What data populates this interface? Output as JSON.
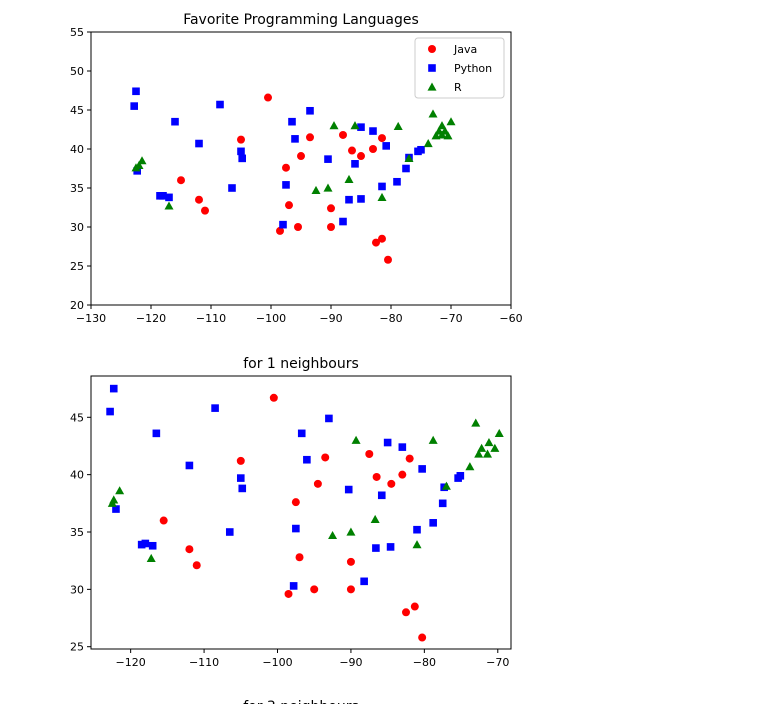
{
  "chart_data": [
    {
      "type": "scatter",
      "title": "Favorite Programming Languages",
      "xlim": [
        -130,
        -60
      ],
      "ylim": [
        20,
        55
      ],
      "x_ticks": [
        -130,
        -120,
        -110,
        -100,
        -90,
        -80,
        -70,
        -60
      ],
      "y_ticks": [
        20,
        25,
        30,
        35,
        40,
        45,
        50,
        55
      ],
      "legend": "top-right",
      "colors": {
        "Java": "#ff0000",
        "Python": "#0000ff",
        "R": "#008000"
      },
      "series": [
        {
          "name": "Java",
          "marker": "circle",
          "points": [
            [
              -100.5,
              46.6
            ],
            [
              -105,
              41.2
            ],
            [
              -97.5,
              37.6
            ],
            [
              -115,
              36
            ],
            [
              -112,
              33.5
            ],
            [
              -111,
              32.1
            ],
            [
              -97,
              32.8
            ],
            [
              -98.5,
              29.5
            ],
            [
              -95.5,
              30
            ],
            [
              -95,
              39.1
            ],
            [
              -93.5,
              41.5
            ],
            [
              -88,
              41.8
            ],
            [
              -86.5,
              39.8
            ],
            [
              -85,
              39.1
            ],
            [
              -83,
              40
            ],
            [
              -81.5,
              41.4
            ],
            [
              -90,
              32.4
            ],
            [
              -90,
              30
            ],
            [
              -82.5,
              28
            ],
            [
              -81.5,
              28.5
            ],
            [
              -80.5,
              25.8
            ]
          ]
        },
        {
          "name": "Python",
          "marker": "square",
          "points": [
            [
              -122.5,
              47.4
            ],
            [
              -122.8,
              45.5
            ],
            [
              -122.3,
              37.2
            ],
            [
              -118.5,
              34
            ],
            [
              -118,
              34
            ],
            [
              -117,
              33.8
            ],
            [
              -116,
              43.5
            ],
            [
              -112,
              40.7
            ],
            [
              -108.5,
              45.7
            ],
            [
              -106.5,
              35
            ],
            [
              -105,
              39.7
            ],
            [
              -104.8,
              38.8
            ],
            [
              -97.5,
              35.4
            ],
            [
              -98,
              30.3
            ],
            [
              -96.5,
              43.5
            ],
            [
              -96,
              41.3
            ],
            [
              -93.5,
              44.9
            ],
            [
              -90.5,
              38.7
            ],
            [
              -88,
              30.7
            ],
            [
              -87,
              33.5
            ],
            [
              -86,
              38.1
            ],
            [
              -85,
              42.8
            ],
            [
              -85,
              33.6
            ],
            [
              -83,
              42.3
            ],
            [
              -81.5,
              35.2
            ],
            [
              -80.8,
              40.4
            ],
            [
              -79,
              35.8
            ],
            [
              -77.5,
              37.5
            ],
            [
              -77,
              38.9
            ],
            [
              -75.5,
              39.7
            ],
            [
              -75,
              39.9
            ]
          ]
        },
        {
          "name": "R",
          "marker": "triangle",
          "points": [
            [
              -122.5,
              37.6
            ],
            [
              -122,
              37.9
            ],
            [
              -121.5,
              38.5
            ],
            [
              -117,
              32.7
            ],
            [
              -92.5,
              34.7
            ],
            [
              -90.5,
              35
            ],
            [
              -89.5,
              43
            ],
            [
              -87,
              36.1
            ],
            [
              -86,
              43
            ],
            [
              -81.5,
              33.8
            ],
            [
              -78.8,
              42.9
            ],
            [
              -77,
              38.8
            ],
            [
              -73.8,
              40.7
            ],
            [
              -73,
              44.5
            ],
            [
              -72.5,
              41.7
            ],
            [
              -72,
              42.3
            ],
            [
              -71.5,
              41.8
            ],
            [
              -71,
              42.3
            ],
            [
              -70.5,
              41.7
            ],
            [
              -70,
              43.5
            ],
            [
              -71.5,
              43
            ]
          ]
        }
      ]
    },
    {
      "type": "scatter",
      "title": "for 1 neighbours",
      "xlim": [
        -125.4,
        -68.2
      ],
      "ylim": [
        24.8,
        48.6
      ],
      "x_ticks": [
        -120,
        -110,
        -100,
        -90,
        -80,
        -70
      ],
      "y_ticks": [
        25,
        30,
        35,
        40,
        45
      ],
      "colors": {
        "Java": "#ff0000",
        "Python": "#0000ff",
        "R": "#008000"
      },
      "series": [
        {
          "name": "Java",
          "marker": "circle",
          "points": [
            [
              -100.5,
              46.7
            ],
            [
              -105,
              41.2
            ],
            [
              -97.5,
              37.6
            ],
            [
              -115.5,
              36
            ],
            [
              -112,
              33.5
            ],
            [
              -111,
              32.1
            ],
            [
              -97,
              32.8
            ],
            [
              -98.5,
              29.6
            ],
            [
              -95,
              30
            ],
            [
              -94.5,
              39.2
            ],
            [
              -93.5,
              41.5
            ],
            [
              -87.5,
              41.8
            ],
            [
              -86.5,
              39.8
            ],
            [
              -84.5,
              39.2
            ],
            [
              -83,
              40
            ],
            [
              -82,
              41.4
            ],
            [
              -90,
              32.4
            ],
            [
              -90,
              30
            ],
            [
              -82.5,
              28
            ],
            [
              -81.3,
              28.5
            ],
            [
              -80.3,
              25.8
            ]
          ]
        },
        {
          "name": "Python",
          "marker": "square",
          "points": [
            [
              -122.3,
              47.5
            ],
            [
              -122.8,
              45.5
            ],
            [
              -122,
              37
            ],
            [
              -118.5,
              33.9
            ],
            [
              -118,
              34
            ],
            [
              -117,
              33.8
            ],
            [
              -116.5,
              43.6
            ],
            [
              -112,
              40.8
            ],
            [
              -108.5,
              45.8
            ],
            [
              -106.5,
              35
            ],
            [
              -105,
              39.7
            ],
            [
              -104.8,
              38.8
            ],
            [
              -97.5,
              35.3
            ],
            [
              -97.8,
              30.3
            ],
            [
              -96.7,
              43.6
            ],
            [
              -96,
              41.3
            ],
            [
              -93,
              44.9
            ],
            [
              -90.3,
              38.7
            ],
            [
              -88.2,
              30.7
            ],
            [
              -86.6,
              33.6
            ],
            [
              -85.8,
              38.2
            ],
            [
              -85,
              42.8
            ],
            [
              -84.6,
              33.7
            ],
            [
              -83,
              42.4
            ],
            [
              -81,
              35.2
            ],
            [
              -80.3,
              40.5
            ],
            [
              -78.8,
              35.8
            ],
            [
              -77.5,
              37.5
            ],
            [
              -77.3,
              38.9
            ],
            [
              -75.4,
              39.7
            ],
            [
              -75.1,
              39.9
            ]
          ]
        },
        {
          "name": "R",
          "marker": "triangle",
          "points": [
            [
              -122.5,
              37.5
            ],
            [
              -122.3,
              37.8
            ],
            [
              -121.5,
              38.6
            ],
            [
              -117.2,
              32.7
            ],
            [
              -92.5,
              34.7
            ],
            [
              -90,
              35
            ],
            [
              -89.3,
              43
            ],
            [
              -86.7,
              36.1
            ],
            [
              -78.8,
              43
            ],
            [
              -81,
              33.9
            ],
            [
              -77,
              39
            ],
            [
              -73.8,
              40.7
            ],
            [
              -73,
              44.5
            ],
            [
              -72.6,
              41.8
            ],
            [
              -72.2,
              42.3
            ],
            [
              -71.4,
              41.8
            ],
            [
              -71.2,
              42.8
            ],
            [
              -70.4,
              42.3
            ],
            [
              -69.8,
              43.6
            ]
          ]
        }
      ]
    }
  ],
  "partial_title": "for 3 neighbours"
}
